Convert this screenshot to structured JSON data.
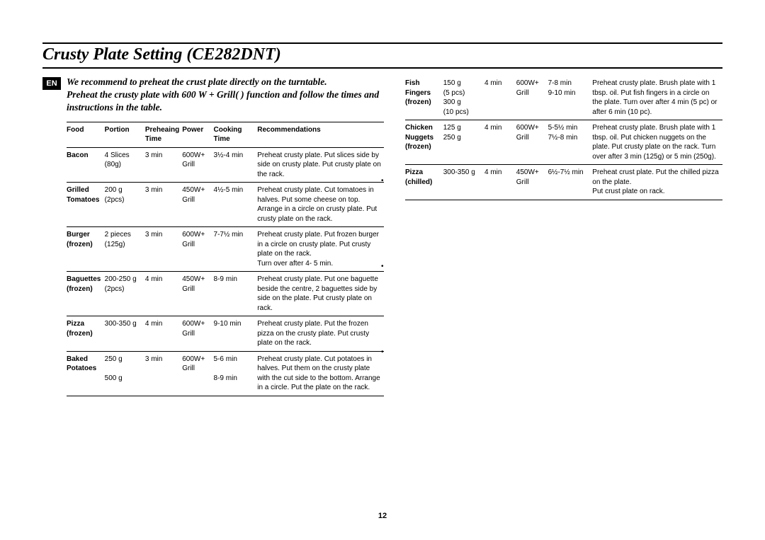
{
  "lang_badge": "EN",
  "title": "Crusty Plate Setting (CE282DNT)",
  "intro_line1": "We recommend to preheat the crust plate directly on the turntable.",
  "intro_line2": "Preheat the crusty plate with 600 W + Grill( ) function and follow the times and instructions in the table.",
  "page_number": "12",
  "headers": {
    "food": "Food",
    "portion": "Portion",
    "preheat_l1": "Preheaing",
    "preheat_l2": "Time",
    "power": "Power",
    "cook_l1": "Cooking",
    "cook_l2": "Time",
    "rec": "Recommendations"
  },
  "table1": [
    {
      "food_l1": "Bacon",
      "food_l2": "",
      "portion_l1": "4 Slices",
      "portion_l2": "(80g)",
      "preheat": "3 min",
      "power_l1": "600W+",
      "power_l2": "Grill",
      "cook_l1": "3½-4 min",
      "cook_l2": "",
      "rec": "Preheat crusty plate. Put slices side by side on crusty plate. Put crusty plate on the rack."
    },
    {
      "food_l1": "Grilled",
      "food_l2": "Tomatoes",
      "portion_l1": "200 g",
      "portion_l2": "(2pcs)",
      "preheat": "3 min",
      "power_l1": "450W+",
      "power_l2": "Grill",
      "cook_l1": "4½-5 min",
      "cook_l2": "",
      "rec": "Preheat crusty plate. Cut tomatoes in halves. Put some cheese on top. Arrange in a circle on crusty plate. Put crusty plate on the rack."
    },
    {
      "food_l1": "Burger",
      "food_l2": "(frozen)",
      "portion_l1": "2 pieces",
      "portion_l2": "(125g)",
      "preheat": "3 min",
      "power_l1": "600W+",
      "power_l2": "Grill",
      "cook_l1": "7-7½ min",
      "cook_l2": "",
      "rec": "Preheat crusty plate. Put frozen burger in a circle on crusty plate. Put crusty plate on the rack.\nTurn over after 4- 5 min."
    },
    {
      "food_l1": "Baguettes",
      "food_l2": "(frozen)",
      "portion_l1": "200-250 g",
      "portion_l2": "(2pcs)",
      "preheat": "4 min",
      "power_l1": "450W+",
      "power_l2": "Grill",
      "cook_l1": "8-9 min",
      "cook_l2": "",
      "rec": "Preheat crusty plate. Put one baguette beside the centre, 2 baguettes side by side on the plate. Put crusty plate on rack."
    },
    {
      "food_l1": "Pizza",
      "food_l2": "(frozen)",
      "portion_l1": "300-350 g",
      "portion_l2": "",
      "preheat": "4 min",
      "power_l1": "600W+",
      "power_l2": "Grill",
      "cook_l1": "9-10 min",
      "cook_l2": "",
      "rec": "Preheat crusty plate. Put the frozen pizza on the crusty plate. Put crusty plate on the rack."
    },
    {
      "food_l1": "Baked",
      "food_l2": "Potatoes",
      "portion_l1": "250 g",
      "portion_l2": "",
      "portion_l3": "500 g",
      "preheat": "3 min",
      "power_l1": "600W+",
      "power_l2": "Grill",
      "cook_l1": "5-6 min",
      "cook_l2": "",
      "cook_l3": "8-9 min",
      "rec": "Preheat crusty plate. Cut potatoes in halves. Put them on the crusty plate with the cut side to the bottom. Arrange in a circle. Put the plate on the rack."
    }
  ],
  "table2": [
    {
      "food_l1": "Fish",
      "food_l2": "Fingers",
      "food_l3": "(frozen)",
      "portion_l1": "150 g",
      "portion_l2": "(5 pcs)",
      "portion_l3": "300 g",
      "portion_l4": "(10 pcs)",
      "preheat": "4 min",
      "power_l1": "600W+",
      "power_l2": "Grill",
      "cook_l1": "7-8 min",
      "cook_l2": "",
      "cook_l3": "9-10 min",
      "rec": "Preheat crusty plate. Brush plate with 1 tbsp. oil. Put fish fingers in a circle on the plate. Turn over after 4 min (5 pc) or after 6 min (10 pc)."
    },
    {
      "food_l1": "Chicken",
      "food_l2": "Nuggets",
      "food_l3": "(frozen)",
      "portion_l1": "125 g",
      "portion_l2": "",
      "portion_l3": "250 g",
      "preheat": "4 min",
      "power_l1": "600W+",
      "power_l2": "Grill",
      "cook_l1": "5-5½ min",
      "cook_l2": "",
      "cook_l3": "7½-8 min",
      "rec": "Preheat crusty plate. Brush plate with 1 tbsp. oil. Put chicken nuggets on the plate. Put crusty plate on the rack. Turn over after 3 min (125g) or 5 min (250g)."
    },
    {
      "food_l1": "Pizza",
      "food_l2": "(chilled)",
      "portion_l1": "300-350 g",
      "preheat": "4 min",
      "power_l1": "450W+",
      "power_l2": "Grill",
      "cook_l1": "6½-7½ min",
      "rec": "Preheat crust plate. Put the chilled pizza on the plate.\nPut crust plate on rack."
    }
  ]
}
